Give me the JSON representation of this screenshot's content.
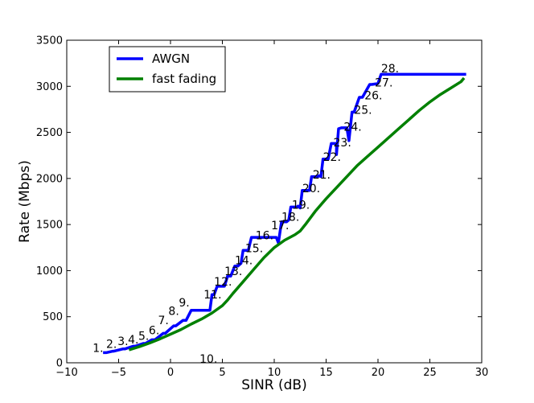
{
  "chart_data": {
    "type": "line",
    "title": "",
    "xlabel": "SINR (dB)",
    "ylabel": "Rate (Mbps)",
    "xlim": [
      -10,
      30
    ],
    "ylim": [
      0,
      3500
    ],
    "xticks": [
      -10,
      -5,
      0,
      5,
      10,
      15,
      20,
      25,
      30
    ],
    "yticks": [
      0,
      500,
      1000,
      1500,
      2000,
      2500,
      3000,
      3500
    ],
    "xtick_labels": [
      "−10",
      "−5",
      "0",
      "5",
      "10",
      "15",
      "20",
      "25",
      "30"
    ],
    "ytick_labels": [
      "0",
      "500",
      "1000",
      "1500",
      "2000",
      "2500",
      "3000",
      "3500"
    ],
    "grid": false,
    "legend_position": "top-left",
    "series": [
      {
        "name": "AWGN",
        "color": "#0000ff",
        "x": [
          -6.5,
          -6.2,
          -5.6,
          -5.5,
          -4.6,
          -4.4,
          -3.6,
          -3.4,
          -2.6,
          -2.4,
          -1.8,
          -1.5,
          -0.7,
          -0.5,
          0.3,
          0.5,
          1.2,
          1.5,
          2.0,
          2.2,
          3.8,
          4.0,
          4.2,
          4.5,
          5.0,
          5.2,
          5.5,
          5.8,
          6.2,
          6.5,
          6.8,
          7.0,
          7.5,
          7.8,
          8.5,
          8.7,
          9.5,
          9.7,
          10.2,
          10.4,
          10.7,
          11.2,
          11.4,
          11.6,
          12.2,
          12.3,
          12.5,
          12.7,
          13.4,
          13.6,
          14.2,
          14.3,
          14.5,
          14.7,
          15.2,
          15.5,
          16.0,
          16.0,
          16.2,
          16.5,
          17.0,
          17.2,
          17.5,
          17.7,
          18.2,
          18.5,
          19.2,
          19.4,
          20.0,
          20.3,
          20.8,
          28.5
        ],
        "values": [
          110,
          110,
          125,
          125,
          150,
          150,
          180,
          180,
          210,
          210,
          250,
          250,
          320,
          320,
          400,
          400,
          460,
          460,
          570,
          570,
          570,
          740,
          740,
          830,
          830,
          830,
          940,
          940,
          1050,
          1050,
          1080,
          1220,
          1220,
          1360,
          1360,
          1360,
          1360,
          1360,
          1360,
          1300,
          1530,
          1530,
          1550,
          1690,
          1690,
          1700,
          1680,
          1870,
          1870,
          2020,
          2020,
          2030,
          2020,
          2210,
          2210,
          2380,
          2380,
          2260,
          2540,
          2550,
          2550,
          2410,
          2720,
          2720,
          2880,
          2880,
          3020,
          3020,
          3030,
          3130,
          3130,
          3130
        ]
      },
      {
        "name": "fast fading",
        "color": "#008000",
        "x": [
          -4,
          -3,
          -2,
          -1,
          0,
          1,
          2,
          3,
          4,
          5,
          5.5,
          6,
          7,
          8,
          9,
          10,
          11,
          12,
          12.5,
          13,
          14,
          15,
          16,
          17,
          18,
          19,
          20,
          21,
          22,
          23,
          24,
          25,
          26,
          27,
          28,
          28.3
        ],
        "values": [
          140,
          175,
          215,
          260,
          310,
          360,
          420,
          475,
          540,
          620,
          680,
          750,
          880,
          1010,
          1140,
          1250,
          1330,
          1390,
          1430,
          1500,
          1650,
          1780,
          1900,
          2020,
          2140,
          2240,
          2340,
          2440,
          2540,
          2640,
          2740,
          2830,
          2910,
          2980,
          3050,
          3090
        ]
      }
    ],
    "annotations": [
      {
        "text": "1.",
        "x": -7.5,
        "y": 120
      },
      {
        "text": "2.",
        "x": -6.2,
        "y": 160
      },
      {
        "text": "3.",
        "x": -5.1,
        "y": 190
      },
      {
        "text": "4.",
        "x": -4.1,
        "y": 210
      },
      {
        "text": "5.",
        "x": -3.1,
        "y": 250
      },
      {
        "text": "6.",
        "x": -2.1,
        "y": 310
      },
      {
        "text": "7.",
        "x": -1.2,
        "y": 420
      },
      {
        "text": "8.",
        "x": -0.2,
        "y": 520
      },
      {
        "text": "9.",
        "x": 0.8,
        "y": 610
      },
      {
        "text": "10.",
        "x": 2.8,
        "y": 0
      },
      {
        "text": "11.",
        "x": 3.2,
        "y": 700
      },
      {
        "text": "12.",
        "x": 4.2,
        "y": 840
      },
      {
        "text": "13.",
        "x": 5.2,
        "y": 950
      },
      {
        "text": "14.",
        "x": 6.2,
        "y": 1070
      },
      {
        "text": "15.",
        "x": 7.2,
        "y": 1200
      },
      {
        "text": "16.",
        "x": 8.2,
        "y": 1340
      },
      {
        "text": "17.",
        "x": 9.7,
        "y": 1450
      },
      {
        "text": "18.",
        "x": 10.7,
        "y": 1540
      },
      {
        "text": "19.",
        "x": 11.7,
        "y": 1670
      },
      {
        "text": "20.",
        "x": 12.7,
        "y": 1850
      },
      {
        "text": "21.",
        "x": 13.7,
        "y": 2000
      },
      {
        "text": "22.",
        "x": 14.7,
        "y": 2190
      },
      {
        "text": "23.",
        "x": 15.7,
        "y": 2350
      },
      {
        "text": "24.",
        "x": 16.7,
        "y": 2520
      },
      {
        "text": "25.",
        "x": 17.7,
        "y": 2700
      },
      {
        "text": "26.",
        "x": 18.7,
        "y": 2860
      },
      {
        "text": "27.",
        "x": 19.7,
        "y": 3000
      },
      {
        "text": "28.",
        "x": 20.3,
        "y": 3150
      }
    ]
  }
}
